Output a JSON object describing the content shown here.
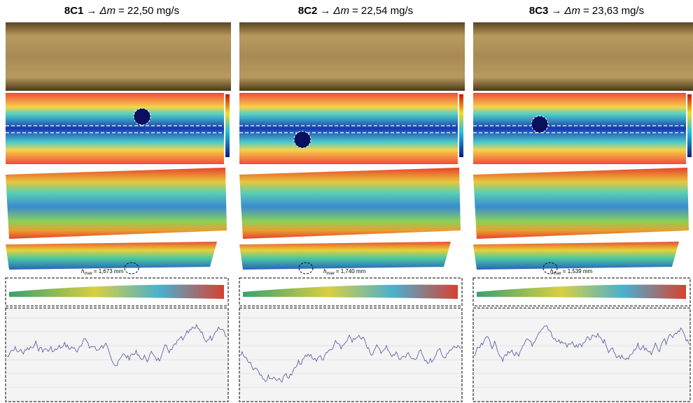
{
  "columns": [
    {
      "id": "8C1",
      "arrow": "→",
      "delta_symbol": "Δm",
      "value_text": "= 22,50 mg/s",
      "hmax_symbol": "h",
      "hmax_subscript": "max",
      "hmax_value": "= 1,673 mm"
    },
    {
      "id": "8C2",
      "arrow": "→",
      "delta_symbol": "Δm",
      "value_text": "= 22,54 mg/s",
      "hmax_symbol": "h",
      "hmax_subscript": "max",
      "hmax_value": "= 1,740 mm"
    },
    {
      "id": "8C3",
      "arrow": "→",
      "delta_symbol": "Δm",
      "value_text": "= 23,63 mg/s",
      "hmax_symbol": "h",
      "hmax_subscript": "max",
      "hmax_value": "= 1,539 mm"
    }
  ]
}
